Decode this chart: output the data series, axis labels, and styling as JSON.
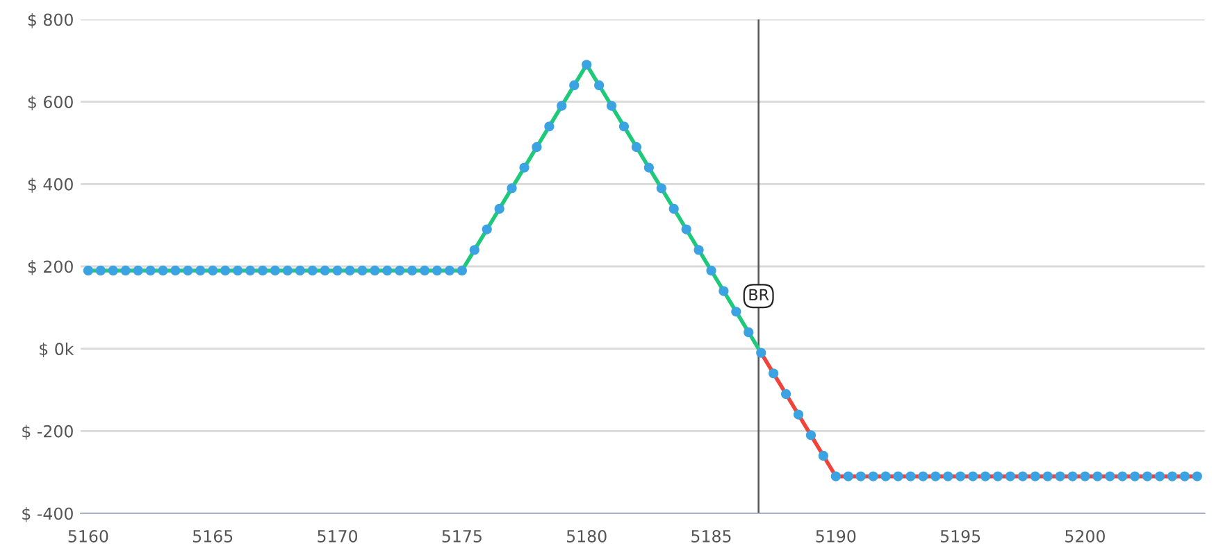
{
  "chart_data": {
    "type": "line",
    "series": [
      {
        "color": "#1fc97a",
        "x": [
          5160,
          5160.5,
          5161,
          5161.5,
          5162,
          5162.5,
          5163,
          5163.5,
          5164,
          5164.5,
          5165,
          5165.5,
          5166,
          5166.5,
          5167,
          5167.5,
          5168,
          5168.5,
          5169,
          5169.5,
          5170,
          5170.5,
          5171,
          5171.5,
          5172,
          5172.5,
          5173,
          5173.5,
          5174,
          5174.5,
          5175,
          5175.5,
          5176,
          5176.5,
          5177,
          5177.5,
          5178,
          5178.5,
          5179,
          5179.5,
          5180,
          5180.5,
          5181,
          5181.5,
          5182,
          5182.5,
          5183,
          5183.5,
          5184,
          5184.5,
          5185,
          5185.5,
          5186,
          5186.5,
          5187
        ],
        "values": [
          190,
          190,
          190,
          190,
          190,
          190,
          190,
          190,
          190,
          190,
          190,
          190,
          190,
          190,
          190,
          190,
          190,
          190,
          190,
          190,
          190,
          190,
          190,
          190,
          190,
          190,
          190,
          190,
          190,
          190,
          190,
          240,
          290,
          340,
          390,
          440,
          490,
          540,
          590,
          640,
          690,
          640,
          590,
          540,
          490,
          440,
          390,
          340,
          290,
          240,
          190,
          140,
          90,
          40,
          -10
        ]
      },
      {
        "color": "#f0433a",
        "x": [
          5187,
          5187.5,
          5188,
          5188.5,
          5189,
          5189.5,
          5190,
          5204.5
        ],
        "values": [
          -10,
          -60,
          -110,
          -160,
          -210,
          -260,
          -310,
          -310
        ]
      },
      {
        "type": "scatter",
        "marker": "circle",
        "color": "#3ba3e2",
        "x": [
          5160,
          5160.5,
          5161,
          5161.5,
          5162,
          5162.5,
          5163,
          5163.5,
          5164,
          5164.5,
          5165,
          5165.5,
          5166,
          5166.5,
          5167,
          5167.5,
          5168,
          5168.5,
          5169,
          5169.5,
          5170,
          5170.5,
          5171,
          5171.5,
          5172,
          5172.5,
          5173,
          5173.5,
          5174,
          5174.5,
          5175,
          5175.5,
          5176,
          5176.5,
          5177,
          5177.5,
          5178,
          5178.5,
          5179,
          5179.5,
          5180,
          5180.5,
          5181,
          5181.5,
          5182,
          5182.5,
          5183,
          5183.5,
          5184,
          5184.5,
          5185,
          5185.5,
          5186,
          5186.5,
          5187,
          5187.5,
          5188,
          5188.5,
          5189,
          5189.5,
          5190,
          5190.5,
          5191,
          5191.5,
          5192,
          5192.5,
          5193,
          5193.5,
          5194,
          5194.5,
          5195,
          5195.5,
          5196,
          5196.5,
          5197,
          5197.5,
          5198,
          5198.5,
          5199,
          5199.5,
          5200,
          5200.5,
          5201,
          5201.5,
          5202,
          5202.5,
          5203,
          5203.5,
          5204,
          5204.5
        ],
        "values": [
          190,
          190,
          190,
          190,
          190,
          190,
          190,
          190,
          190,
          190,
          190,
          190,
          190,
          190,
          190,
          190,
          190,
          190,
          190,
          190,
          190,
          190,
          190,
          190,
          190,
          190,
          190,
          190,
          190,
          190,
          190,
          240,
          290,
          340,
          390,
          440,
          490,
          540,
          590,
          640,
          690,
          640,
          590,
          540,
          490,
          440,
          390,
          340,
          290,
          240,
          190,
          140,
          90,
          40,
          -10,
          -60,
          -110,
          -160,
          -210,
          -260,
          -310,
          -310,
          -310,
          -310,
          -310,
          -310,
          -310,
          -310,
          -310,
          -310,
          -310,
          -310,
          -310,
          -310,
          -310,
          -310,
          -310,
          -310,
          -310,
          -310,
          -310,
          -310,
          -310,
          -310,
          -310,
          -310,
          -310,
          -310,
          -310,
          -310
        ]
      }
    ],
    "xlim": [
      5159.7,
      5204.8
    ],
    "xticks": [
      5160,
      5165,
      5170,
      5175,
      5180,
      5185,
      5190,
      5195,
      5200
    ],
    "ylim": [
      -400,
      800
    ],
    "yticks": [
      {
        "value": -400,
        "label": "$ -400"
      },
      {
        "value": -200,
        "label": "$ -200"
      },
      {
        "value": 0,
        "label": "$ 0k"
      },
      {
        "value": 200,
        "label": "$ 200"
      },
      {
        "value": 400,
        "label": "$ 400"
      },
      {
        "value": 600,
        "label": "$ 600"
      },
      {
        "value": 800,
        "label": "$ 800"
      }
    ],
    "grid": "y",
    "line_style": "solid",
    "ref_lines": [
      {
        "axis": "x",
        "value": 5186.9,
        "label": "BR",
        "color": "#555555"
      }
    ]
  }
}
